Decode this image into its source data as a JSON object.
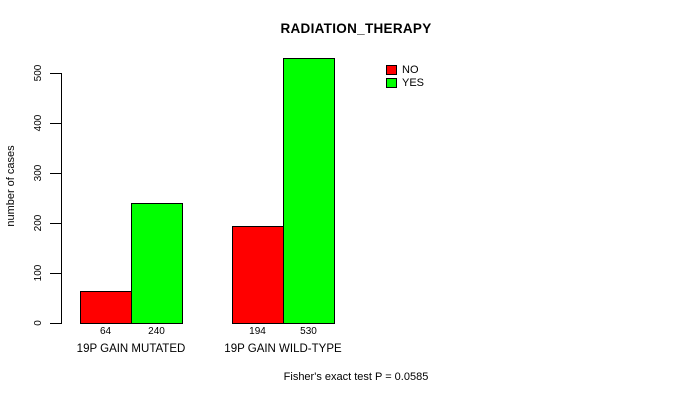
{
  "figure": {
    "background": "#FFFFFF",
    "axis_color": "#000000"
  },
  "chart_data": {
    "type": "bar",
    "title": "RADIATION_THERAPY",
    "xlabel": "",
    "ylabel": "number of cases",
    "categories": [
      "19P GAIN MUTATED",
      "19P GAIN WILD-TYPE"
    ],
    "series": [
      {
        "name": "NO",
        "color": "#FF0000",
        "values": [
          64,
          194
        ]
      },
      {
        "name": "YES",
        "color": "#00FF00",
        "values": [
          240,
          530
        ]
      }
    ],
    "yticks": [
      0,
      100,
      200,
      300,
      400,
      500
    ],
    "ylim": [
      0,
      530
    ],
    "grid": false,
    "bar_value_labels": true,
    "legend_position": "top-right",
    "caption": "Fisher's exact test P = 0.0585"
  }
}
